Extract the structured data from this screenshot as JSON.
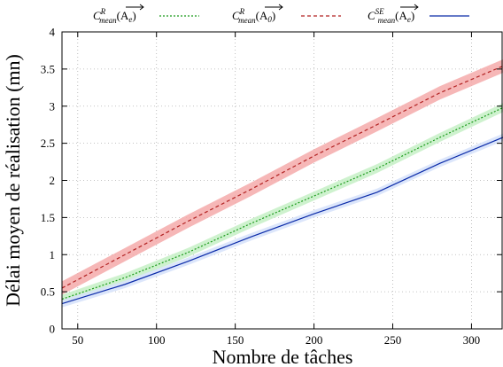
{
  "chart_data": {
    "type": "line",
    "xlabel": "Nombre de tâches",
    "ylabel": "Délai moyen de réalisation (mn)",
    "xlim": [
      40,
      320
    ],
    "ylim": [
      0,
      4
    ],
    "x_ticks": [
      50,
      100,
      150,
      200,
      250,
      300
    ],
    "y_ticks": [
      0,
      0.5,
      1,
      1.5,
      2,
      2.5,
      3,
      3.5,
      4
    ],
    "grid": true,
    "legend_position": "top",
    "series": [
      {
        "key": "green",
        "name_base": "C",
        "name_sup": "R",
        "name_sub": "mean",
        "name_arg": "A",
        "name_arg_sub": "e",
        "color": "#1a9a1a",
        "band_color": "#c6f0c6",
        "style": "dotted",
        "x": [
          40,
          80,
          120,
          160,
          200,
          240,
          280,
          320
        ],
        "y": [
          0.4,
          0.69,
          1.03,
          1.42,
          1.79,
          2.16,
          2.58,
          2.98
        ],
        "band": 0.06
      },
      {
        "key": "red",
        "name_base": "C",
        "name_sup": "R",
        "name_sub": "mean",
        "name_arg": "A",
        "name_arg_sub": "0",
        "color": "#b22222",
        "band_color": "#f4aaaa",
        "style": "dashed",
        "x": [
          40,
          80,
          120,
          160,
          200,
          240,
          280,
          320
        ],
        "y": [
          0.55,
          1.0,
          1.45,
          1.88,
          2.33,
          2.75,
          3.18,
          3.54
        ],
        "band": 0.09
      },
      {
        "key": "blue",
        "name_base": "C",
        "name_sup": "SE",
        "name_sub": "mean",
        "name_arg": "A",
        "name_arg_sub": "e",
        "color": "#0a2aa8",
        "band_color": "#d6e2fa",
        "style": "solid",
        "x": [
          40,
          80,
          120,
          160,
          200,
          240,
          280,
          320
        ],
        "y": [
          0.34,
          0.6,
          0.91,
          1.24,
          1.55,
          1.84,
          2.23,
          2.58
        ],
        "band": 0.05
      }
    ]
  }
}
